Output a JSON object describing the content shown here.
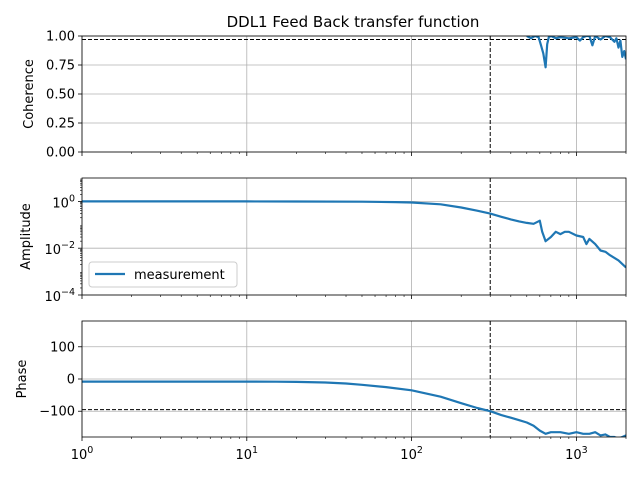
{
  "chart_data": {
    "type": "line",
    "title": "DDL1 Feed Back transfer function",
    "xscale": "log",
    "xlim": [
      1,
      2000
    ],
    "x_ticks": [
      {
        "value": 1,
        "base": "10",
        "exp": "0"
      },
      {
        "value": 10,
        "base": "10",
        "exp": "1"
      },
      {
        "value": 100,
        "base": "10",
        "exp": "2"
      },
      {
        "value": 1000,
        "base": "10",
        "exp": "3"
      }
    ],
    "vline_x": 300,
    "line_color": "#1f77b4",
    "grid": true,
    "panels": [
      {
        "id": "coherence",
        "ylabel": "Coherence",
        "yscale": "linear",
        "ylim": [
          0,
          1
        ],
        "y_ticks": [
          {
            "value": 0,
            "label": "0.00"
          },
          {
            "value": 0.25,
            "label": "0.25"
          },
          {
            "value": 0.5,
            "label": "0.50"
          },
          {
            "value": 0.75,
            "label": "0.75"
          },
          {
            "value": 1.0,
            "label": "1.00"
          }
        ],
        "hline_y": 0.97,
        "series": {
          "x": [
            500,
            530,
            560,
            590,
            610,
            630,
            650,
            665,
            680,
            700,
            750,
            800,
            900,
            1000,
            1050,
            1100,
            1150,
            1200,
            1250,
            1300,
            1400,
            1500,
            1600,
            1700,
            1750,
            1800,
            1850,
            1900,
            1950,
            2000
          ],
          "y": [
            1.0,
            0.98,
            1.0,
            0.99,
            0.92,
            0.85,
            0.73,
            0.93,
            0.99,
            1.0,
            0.98,
            0.99,
            0.98,
            0.99,
            0.96,
            0.99,
            1.0,
            1.0,
            0.92,
            1.0,
            0.97,
            1.0,
            0.99,
            0.95,
            0.98,
            0.9,
            0.96,
            0.82,
            0.87,
            0.8
          ]
        }
      },
      {
        "id": "amplitude",
        "ylabel": "Amplitude",
        "yscale": "log",
        "ylim": [
          0.0001,
          10
        ],
        "y_ticks": [
          {
            "value": 0.0001,
            "base": "10",
            "exp": "−4"
          },
          {
            "value": 0.01,
            "base": "10",
            "exp": "−2"
          },
          {
            "value": 1,
            "base": "10",
            "exp": "0"
          }
        ],
        "legend": {
          "label": "measurement",
          "loc": "lower left"
        },
        "series": {
          "x": [
            1,
            2,
            5,
            10,
            20,
            50,
            80,
            100,
            150,
            200,
            250,
            300,
            350,
            400,
            450,
            500,
            550,
            600,
            620,
            650,
            700,
            750,
            800,
            850,
            900,
            1000,
            1100,
            1150,
            1200,
            1300,
            1400,
            1500,
            1600,
            1800,
            2000
          ],
          "y": [
            1.0,
            1.0,
            1.0,
            1.0,
            0.99,
            0.97,
            0.93,
            0.9,
            0.75,
            0.55,
            0.4,
            0.3,
            0.22,
            0.17,
            0.14,
            0.12,
            0.11,
            0.15,
            0.05,
            0.02,
            0.03,
            0.05,
            0.04,
            0.05,
            0.05,
            0.035,
            0.03,
            0.015,
            0.025,
            0.015,
            0.008,
            0.007,
            0.005,
            0.003,
            0.0015
          ]
        }
      },
      {
        "id": "phase",
        "ylabel": "Phase",
        "yscale": "linear",
        "ylim": [
          -180,
          180
        ],
        "y_ticks": [
          {
            "value": -100,
            "label": "−100"
          },
          {
            "value": 0,
            "label": "0"
          },
          {
            "value": 100,
            "label": "100"
          }
        ],
        "hline_y": -95,
        "series": {
          "x": [
            1,
            2,
            5,
            10,
            15,
            20,
            30,
            40,
            50,
            70,
            100,
            150,
            200,
            250,
            300,
            350,
            400,
            450,
            500,
            550,
            600,
            650,
            700,
            800,
            900,
            1000,
            1100,
            1200,
            1300,
            1400,
            1500,
            1600,
            1700,
            1800,
            1900,
            2000
          ],
          "y": [
            -8,
            -8,
            -8,
            -8,
            -8.5,
            -9,
            -11,
            -14,
            -18,
            -25,
            -35,
            -55,
            -75,
            -90,
            -100,
            -112,
            -120,
            -128,
            -135,
            -145,
            -160,
            -170,
            -165,
            -165,
            -170,
            -165,
            -170,
            -170,
            -165,
            -175,
            -172,
            -180,
            -180,
            -185,
            -180,
            -175
          ]
        }
      }
    ]
  }
}
